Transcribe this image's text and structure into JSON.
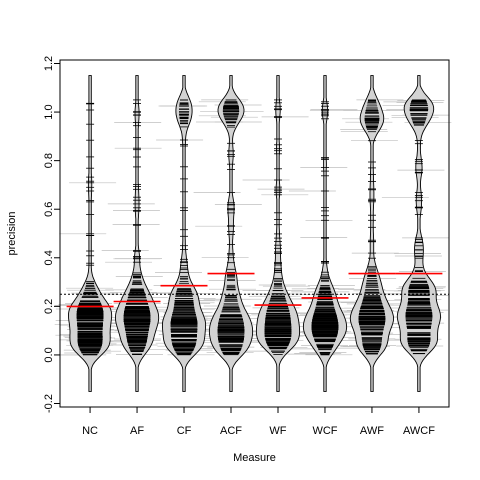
{
  "chart_data": {
    "type": "beanplot",
    "title": "",
    "xlabel": "Measure",
    "ylabel": "precision",
    "ylim": [
      -0.2,
      1.2
    ],
    "yticks": [
      -0.2,
      0.0,
      0.2,
      0.4,
      0.6,
      0.8,
      1.0,
      1.2
    ],
    "categories": [
      "NC",
      "AF",
      "CF",
      "ACF",
      "WF",
      "WCF",
      "AWF",
      "AWCF"
    ],
    "group_means": [
      0.2,
      0.22,
      0.285,
      0.335,
      0.205,
      0.235,
      0.335,
      0.335
    ],
    "overall_mean": 0.25,
    "distribution_range": [
      -0.15,
      1.15
    ],
    "grid": false,
    "colors": {
      "bean_fill": "#d3d3d3",
      "bean_outline": "#000000",
      "data_lines": "#000000",
      "group_mean_line": "#ff0000",
      "overall_mean_line": "#000000",
      "background_lines": "#bfbfbf"
    }
  }
}
